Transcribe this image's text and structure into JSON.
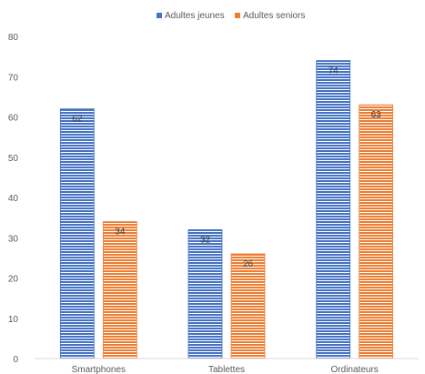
{
  "chart_data": {
    "type": "bar",
    "categories": [
      "Smartphones",
      "Tablettes",
      "Ordinateurs"
    ],
    "series": [
      {
        "name": "Adultes jeunes",
        "values": [
          62,
          32,
          74
        ],
        "color": "#4472C4"
      },
      {
        "name": "Adultes seniors",
        "values": [
          34,
          26,
          63
        ],
        "color": "#ED7D31"
      }
    ],
    "ylim": [
      0,
      80
    ],
    "yticks": [
      0,
      10,
      20,
      30,
      40,
      50,
      60,
      70,
      80
    ],
    "grid": false,
    "legend_position": "top-center",
    "bar_pattern": "horizontal-stripes"
  }
}
